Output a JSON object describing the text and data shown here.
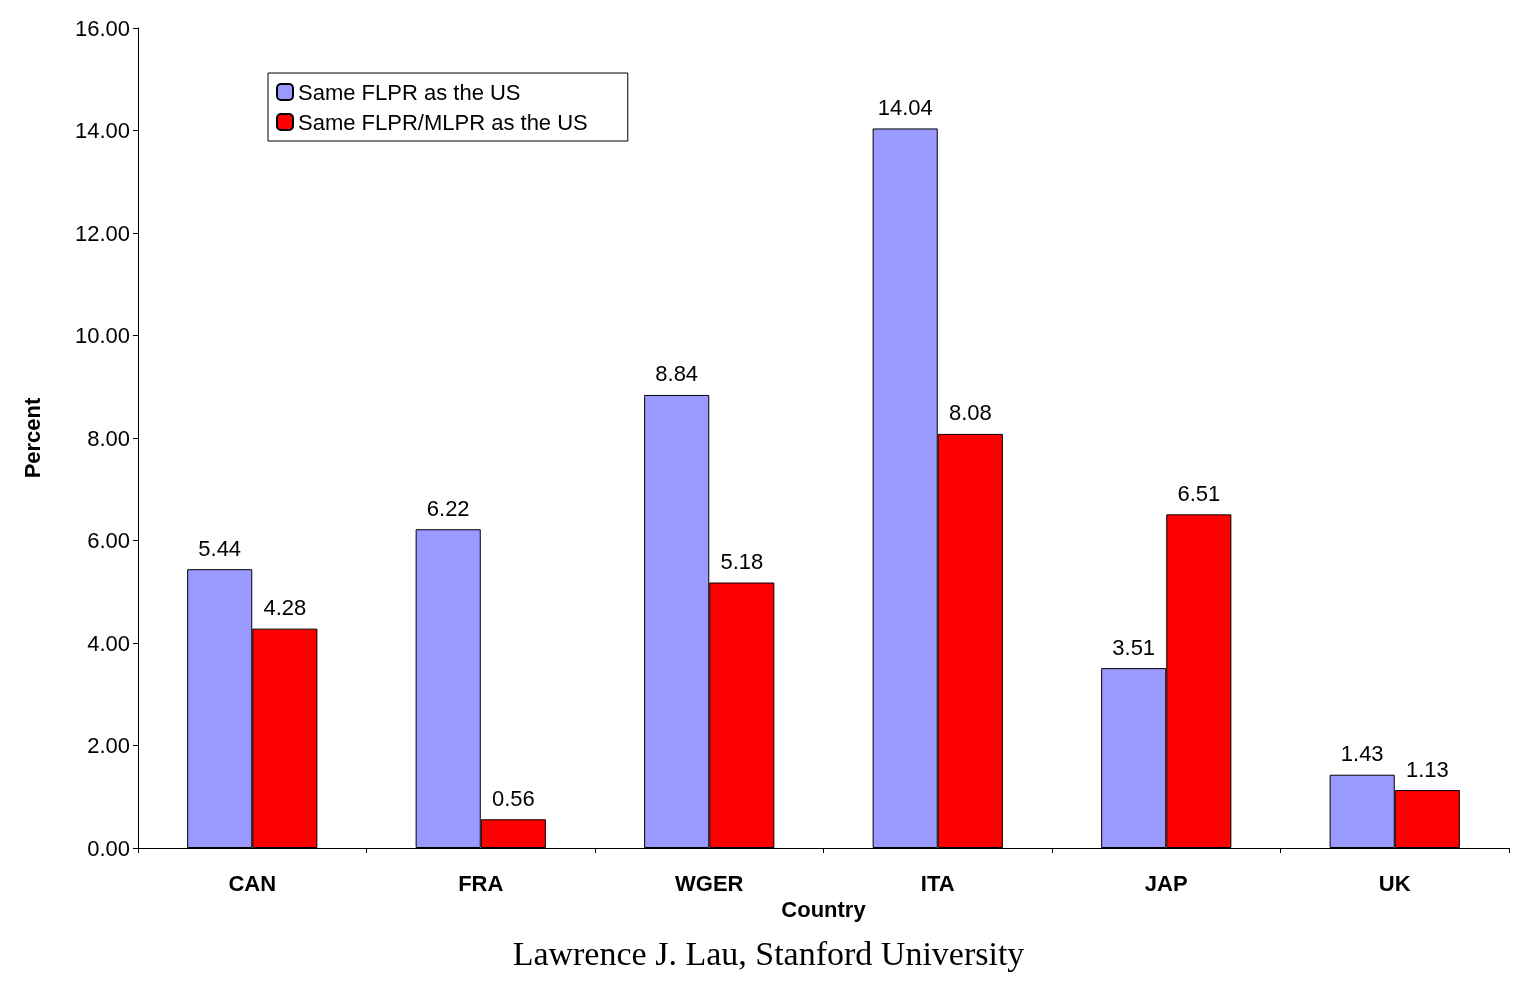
{
  "chart_data": {
    "type": "bar",
    "xlabel": "Country",
    "ylabel": "Percent",
    "categories": [
      "CAN",
      "FRA",
      "WGER",
      "ITA",
      "JAP",
      "UK"
    ],
    "series": [
      {
        "name": "Same FLPR as the US",
        "color": "#9999ff",
        "values": [
          5.44,
          6.22,
          8.84,
          14.04,
          3.51,
          1.43
        ]
      },
      {
        "name": "Same FLPR/MLPR as the US",
        "color": "#ff0000",
        "values": [
          4.28,
          0.56,
          5.18,
          8.08,
          6.51,
          1.13
        ]
      }
    ],
    "ylim": [
      0,
      16
    ],
    "yticks": [
      {
        "value": 0,
        "label": "0.00"
      },
      {
        "value": 2,
        "label": "2.00"
      },
      {
        "value": 4,
        "label": "4.00"
      },
      {
        "value": 6,
        "label": "6.00"
      },
      {
        "value": 8,
        "label": "8.00"
      },
      {
        "value": 10,
        "label": "10.00"
      },
      {
        "value": 12,
        "label": "12.00"
      },
      {
        "value": 14,
        "label": "14.00"
      },
      {
        "value": 16,
        "label": "16.00"
      }
    ],
    "data_labels": true,
    "legend": "top left",
    "grid": false,
    "annotations": [
      "Lawrence J. Lau, Stanford University"
    ]
  }
}
